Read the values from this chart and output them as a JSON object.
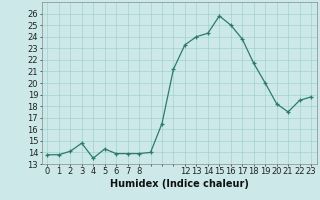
{
  "x_values": [
    0,
    1,
    2,
    3,
    4,
    5,
    6,
    7,
    8,
    9,
    10,
    11,
    12,
    13,
    14,
    15,
    16,
    17,
    18,
    19,
    20,
    21,
    22,
    23
  ],
  "y_values": [
    13.8,
    13.8,
    14.1,
    14.8,
    13.5,
    14.3,
    13.9,
    13.9,
    13.9,
    14.0,
    16.5,
    21.2,
    23.3,
    24.0,
    24.3,
    25.8,
    25.0,
    23.8,
    21.7,
    20.0,
    18.2,
    17.5,
    18.5,
    18.8
  ],
  "xlabel": "Humidex (Indice chaleur)",
  "ylim": [
    13,
    27
  ],
  "xlim": [
    -0.5,
    23.5
  ],
  "yticks": [
    13,
    14,
    15,
    16,
    17,
    18,
    19,
    20,
    21,
    22,
    23,
    24,
    25,
    26
  ],
  "xtick_values": [
    0,
    1,
    2,
    3,
    4,
    5,
    6,
    7,
    8,
    12,
    13,
    14,
    15,
    16,
    17,
    18,
    19,
    20,
    21,
    22,
    23
  ],
  "xtick_labels": [
    "0",
    "1",
    "2",
    "3",
    "4",
    "5",
    "6",
    "7",
    "8",
    "12",
    "13",
    "14",
    "15",
    "16",
    "17",
    "18",
    "19",
    "20",
    "21",
    "22",
    "23"
  ],
  "line_color": "#2d7b6c",
  "bg_color": "#cce8e8",
  "grid_color": "#99cccc",
  "tick_fontsize": 6,
  "label_fontsize": 7
}
